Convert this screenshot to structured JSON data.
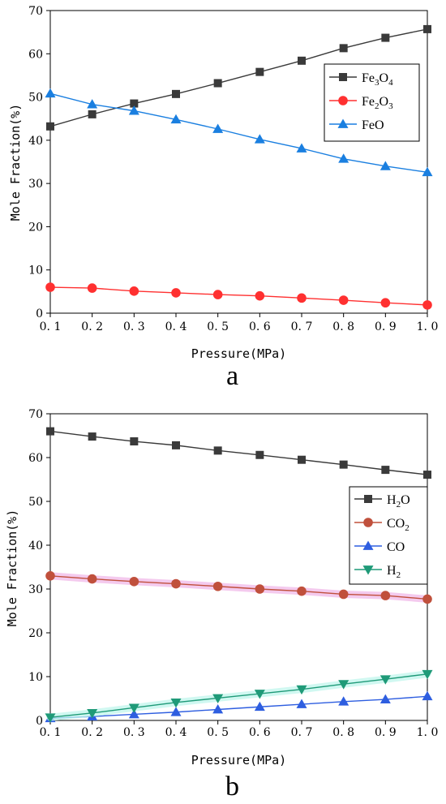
{
  "chart_data": [
    {
      "type": "line",
      "panel_label": "a",
      "xlabel": "Pressure(MPa)",
      "ylabel": "Mole Fraction(%)",
      "xlim": [
        0.1,
        1.0
      ],
      "ylim": [
        0,
        70
      ],
      "x": [
        0.1,
        0.2,
        0.3,
        0.4,
        0.5,
        0.6,
        0.7,
        0.8,
        0.9,
        1.0
      ],
      "x_tick_labels": [
        "0. 1",
        "0. 2",
        "0. 3",
        "0. 4",
        "0. 5",
        "0. 6",
        "0. 7",
        "0. 8",
        "0. 9",
        "1. 0"
      ],
      "y_ticks": [
        0,
        10,
        20,
        30,
        40,
        50,
        60,
        70
      ],
      "legend_position": "top-right",
      "series": [
        {
          "name": "Fe3O4",
          "label_parts": [
            [
              "Fe",
              ""
            ],
            [
              "3",
              "sub"
            ],
            [
              "O",
              ""
            ],
            [
              "4",
              "sub"
            ]
          ],
          "color": "#3a3a3a",
          "marker": "square",
          "values": [
            43.2,
            46.0,
            48.5,
            50.7,
            53.2,
            55.8,
            58.4,
            61.3,
            63.7,
            65.7
          ]
        },
        {
          "name": "Fe2O3",
          "label_parts": [
            [
              "Fe",
              ""
            ],
            [
              "2",
              "sub"
            ],
            [
              "O",
              ""
            ],
            [
              "3",
              "sub"
            ]
          ],
          "color": "#ff3030",
          "marker": "circle",
          "values": [
            6.0,
            5.8,
            5.1,
            4.7,
            4.3,
            4.0,
            3.5,
            3.0,
            2.4,
            1.9
          ]
        },
        {
          "name": "FeO",
          "label_parts": [
            [
              "FeO",
              ""
            ]
          ],
          "color": "#1a7fe0",
          "marker": "triangle-up",
          "values": [
            50.8,
            48.3,
            46.8,
            44.8,
            42.6,
            40.2,
            38.1,
            35.7,
            34.0,
            32.6
          ]
        }
      ]
    },
    {
      "type": "line",
      "panel_label": "b",
      "xlabel": "Pressure(MPa)",
      "ylabel": "Mole Fraction(%)",
      "xlim": [
        0.1,
        1.0
      ],
      "ylim": [
        0,
        70
      ],
      "x": [
        0.1,
        0.2,
        0.3,
        0.4,
        0.5,
        0.6,
        0.7,
        0.8,
        0.9,
        1.0
      ],
      "x_tick_labels": [
        "0. 1",
        "0. 2",
        "0. 3",
        "0. 4",
        "0. 5",
        "0. 6",
        "0. 7",
        "0. 8",
        "0. 9",
        "1. 0"
      ],
      "y_ticks": [
        0,
        10,
        20,
        30,
        40,
        50,
        60,
        70
      ],
      "legend_position": "right",
      "series": [
        {
          "name": "H2O",
          "label_parts": [
            [
              "H",
              ""
            ],
            [
              "2",
              "sub"
            ],
            [
              "O",
              ""
            ]
          ],
          "color": "#3a3a3a",
          "marker": "square",
          "values": [
            66.0,
            64.8,
            63.7,
            62.8,
            61.6,
            60.6,
            59.5,
            58.4,
            57.2,
            56.1
          ]
        },
        {
          "name": "CO2",
          "label_parts": [
            [
              "CO",
              ""
            ],
            [
              "2",
              "sub"
            ]
          ],
          "color": "#c0503c",
          "marker": "circle",
          "glow": "#f0b8e8",
          "values": [
            33.0,
            32.3,
            31.7,
            31.2,
            30.6,
            30.0,
            29.5,
            28.8,
            28.5,
            27.7
          ]
        },
        {
          "name": "CO",
          "label_parts": [
            [
              "CO",
              ""
            ]
          ],
          "color": "#2e5ee0",
          "marker": "triangle-up",
          "values": [
            0.5,
            0.9,
            1.4,
            1.9,
            2.5,
            3.1,
            3.7,
            4.3,
            4.8,
            5.5
          ]
        },
        {
          "name": "H2",
          "label_parts": [
            [
              "H",
              ""
            ],
            [
              "2",
              "sub"
            ]
          ],
          "color": "#1f9a78",
          "marker": "triangle-down",
          "glow": "#c0f5ec",
          "values": [
            0.7,
            1.7,
            2.9,
            4.1,
            5.1,
            6.1,
            7.1,
            8.3,
            9.4,
            10.6
          ]
        }
      ]
    }
  ]
}
